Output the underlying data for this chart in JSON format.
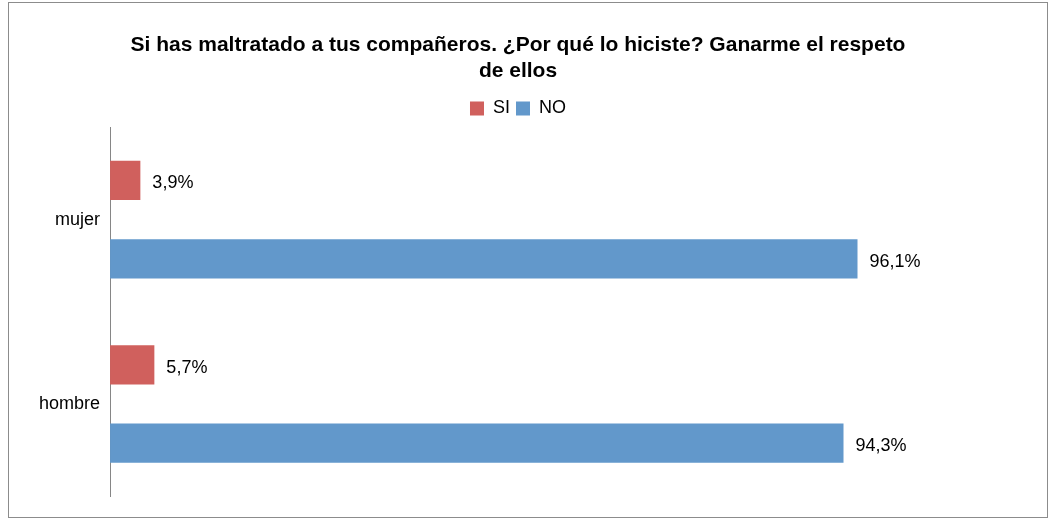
{
  "chart_data": {
    "type": "bar",
    "orientation": "horizontal",
    "title": "Si has maltratado a tus compañeros. ¿Por qué lo hiciste? Ganarme el respeto de ellos",
    "categories": [
      "mujer",
      "hombre"
    ],
    "series": [
      {
        "name": "SI",
        "color": "#d0605d",
        "values": [
          3.9,
          5.7
        ],
        "value_labels": [
          "3,9%",
          "5,7%"
        ]
      },
      {
        "name": "NO",
        "color": "#6298cb",
        "values": [
          96.1,
          94.3
        ],
        "value_labels": [
          "96,1%",
          "94,3%"
        ]
      }
    ],
    "legend": "top",
    "tick_labels": "y"
  }
}
